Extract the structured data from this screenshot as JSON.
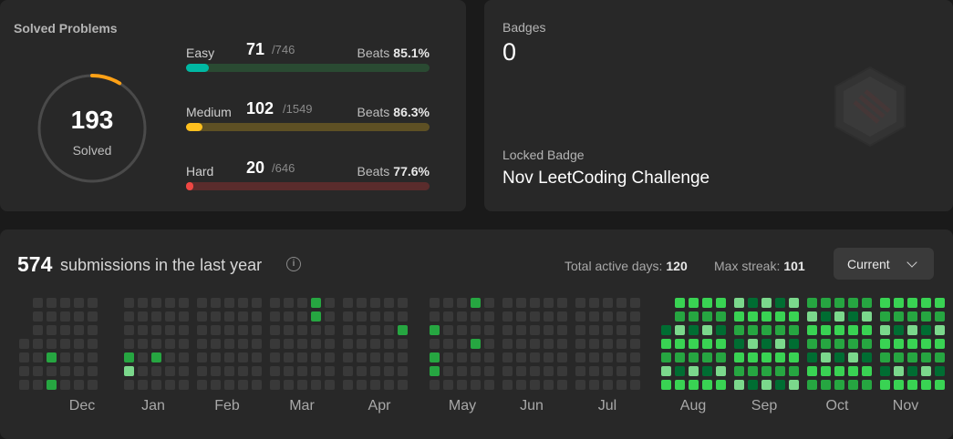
{
  "solved": {
    "title": "Solved Problems",
    "count": "193",
    "label": "Solved",
    "difficulties": [
      {
        "name": "Easy",
        "count": "71",
        "total": "/746",
        "beats_label": "Beats",
        "beats": "85.1%",
        "progress": 0.095,
        "fill": "#00b8a3",
        "track": "#2a4a32"
      },
      {
        "name": "Medium",
        "count": "102",
        "total": "/1549",
        "beats_label": "Beats",
        "beats": "86.3%",
        "progress": 0.066,
        "fill": "#ffc01e",
        "track": "#5e5024"
      },
      {
        "name": "Hard",
        "count": "20",
        "total": "/646",
        "beats_label": "Beats",
        "beats": "77.6%",
        "progress": 0.031,
        "fill": "#ef4743",
        "track": "#5a2c2c"
      }
    ],
    "ring_progress": 0.087
  },
  "badges": {
    "label": "Badges",
    "count": "0",
    "locked_label": "Locked Badge",
    "locked_name": "Nov LeetCoding Challenge"
  },
  "submissions": {
    "total": "574",
    "text": "submissions in the last year",
    "active_label": "Total active days:",
    "active_value": "120",
    "streak_label": "Max streak:",
    "streak_value": "101",
    "dropdown_value": "Current",
    "months": [
      "Dec",
      "Jan",
      "Feb",
      "Mar",
      "Apr",
      "May",
      "Jun",
      "Jul",
      "Aug",
      "Sep",
      "Oct",
      "Nov"
    ],
    "colors": {
      "empty": "#393939",
      "l1": "#0e4429",
      "l2": "#006d32",
      "l3": "#26a641",
      "l4": "#39d353",
      "l5": "#7bd88c"
    }
  }
}
